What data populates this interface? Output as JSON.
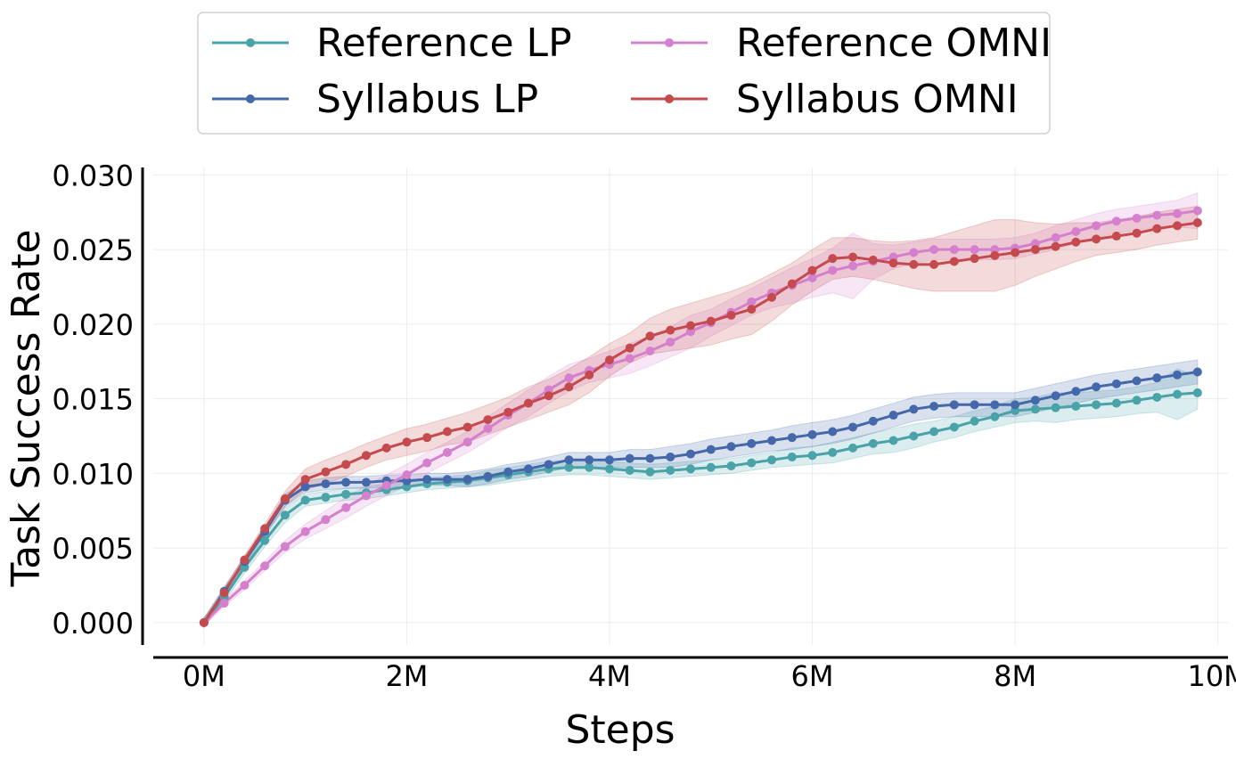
{
  "chart_data": {
    "type": "line",
    "title": "",
    "xlabel": "Steps",
    "ylabel": "Task Success Rate",
    "xlim": [
      -0.5,
      10.1
    ],
    "ylim": [
      -0.0015,
      0.0305
    ],
    "x_ticks": [
      0,
      2,
      4,
      6,
      8,
      10
    ],
    "x_tick_labels": [
      "0M",
      "2M",
      "4M",
      "6M",
      "8M",
      "10M"
    ],
    "y_ticks": [
      0,
      0.005,
      0.01,
      0.015,
      0.02,
      0.025,
      0.03
    ],
    "y_tick_labels": [
      "0.000",
      "0.005",
      "0.010",
      "0.015",
      "0.020",
      "0.025",
      "0.030"
    ],
    "grid": true,
    "legend_position": "top-center",
    "x_unit": "M steps",
    "x": [
      0,
      0.2,
      0.4,
      0.6,
      0.8,
      1.0,
      1.2,
      1.4,
      1.6,
      1.8,
      2.0,
      2.2,
      2.4,
      2.6,
      2.8,
      3.0,
      3.2,
      3.4,
      3.6,
      3.8,
      4.0,
      4.2,
      4.4,
      4.6,
      4.8,
      5.0,
      5.2,
      5.4,
      5.6,
      5.8,
      6.0,
      6.2,
      6.4,
      6.6,
      6.8,
      7.0,
      7.2,
      7.4,
      7.6,
      7.8,
      8.0,
      8.2,
      8.4,
      8.6,
      8.8,
      9.0,
      9.2,
      9.4,
      9.6,
      9.8
    ],
    "series": [
      {
        "name": "Reference LP",
        "color": "#4aa3a8",
        "values": [
          0,
          0.0017,
          0.0037,
          0.0055,
          0.0072,
          0.0082,
          0.0084,
          0.0086,
          0.0087,
          0.0089,
          0.0091,
          0.0093,
          0.0094,
          0.0095,
          0.0097,
          0.0099,
          0.0101,
          0.0103,
          0.0104,
          0.0104,
          0.0103,
          0.0102,
          0.0101,
          0.0102,
          0.0103,
          0.0104,
          0.0105,
          0.0107,
          0.0109,
          0.0111,
          0.0112,
          0.0114,
          0.0117,
          0.012,
          0.0122,
          0.0125,
          0.0128,
          0.0131,
          0.0135,
          0.0138,
          0.0142,
          0.0143,
          0.0144,
          0.0145,
          0.0146,
          0.0147,
          0.0149,
          0.0151,
          0.0153,
          0.0154
        ],
        "band": [
          0.0003,
          0.0003,
          0.0004,
          0.0004,
          0.0005,
          0.0004,
          0.0004,
          0.0004,
          0.0004,
          0.0004,
          0.0004,
          0.0004,
          0.0004,
          0.0004,
          0.0005,
          0.0005,
          0.0005,
          0.0005,
          0.0005,
          0.0005,
          0.0005,
          0.0005,
          0.0005,
          0.0005,
          0.0005,
          0.0005,
          0.0005,
          0.0005,
          0.0005,
          0.0006,
          0.0006,
          0.0007,
          0.0007,
          0.0007,
          0.0008,
          0.0008,
          0.0007,
          0.0007,
          0.0007,
          0.0007,
          0.0008,
          0.0008,
          0.001,
          0.0009,
          0.0009,
          0.0009,
          0.0009,
          0.001,
          0.0017,
          0.0011
        ]
      },
      {
        "name": "Syllabus LP",
        "color": "#4568aa",
        "values": [
          0,
          0.0021,
          0.0041,
          0.0061,
          0.0082,
          0.0091,
          0.0093,
          0.0094,
          0.0094,
          0.0095,
          0.0095,
          0.0096,
          0.0096,
          0.0096,
          0.0098,
          0.0101,
          0.0103,
          0.0106,
          0.0109,
          0.0109,
          0.0109,
          0.011,
          0.011,
          0.0111,
          0.0113,
          0.0116,
          0.0118,
          0.012,
          0.0122,
          0.0124,
          0.0126,
          0.0128,
          0.0131,
          0.0135,
          0.0139,
          0.0143,
          0.0145,
          0.0146,
          0.0146,
          0.0146,
          0.0146,
          0.0149,
          0.0152,
          0.0155,
          0.0158,
          0.016,
          0.0162,
          0.0164,
          0.0166,
          0.0168
        ],
        "band": [
          0.0003,
          0.0003,
          0.0003,
          0.0003,
          0.0004,
          0.0004,
          0.0004,
          0.0004,
          0.0004,
          0.0004,
          0.0004,
          0.0004,
          0.0004,
          0.0005,
          0.0005,
          0.0005,
          0.0005,
          0.0005,
          0.0005,
          0.0005,
          0.0005,
          0.0006,
          0.0006,
          0.0007,
          0.0007,
          0.0007,
          0.0007,
          0.0007,
          0.0007,
          0.0008,
          0.0008,
          0.0008,
          0.0008,
          0.0008,
          0.0008,
          0.0008,
          0.0008,
          0.0008,
          0.0008,
          0.0008,
          0.0008,
          0.0008,
          0.0008,
          0.0008,
          0.0008,
          0.0008,
          0.0008,
          0.0008,
          0.0008,
          0.0008
        ]
      },
      {
        "name": "Reference OMNI",
        "color": "#d580cd",
        "values": [
          0,
          0.0013,
          0.0025,
          0.0038,
          0.0051,
          0.0061,
          0.0069,
          0.0077,
          0.0085,
          0.0092,
          0.0099,
          0.0107,
          0.0114,
          0.0121,
          0.013,
          0.0139,
          0.0147,
          0.0156,
          0.0164,
          0.0169,
          0.0173,
          0.0177,
          0.0182,
          0.0188,
          0.0195,
          0.0201,
          0.0208,
          0.0215,
          0.0221,
          0.0226,
          0.0231,
          0.0236,
          0.0239,
          0.0242,
          0.0245,
          0.0248,
          0.025,
          0.025,
          0.025,
          0.025,
          0.0251,
          0.0254,
          0.0258,
          0.0262,
          0.0266,
          0.0269,
          0.0271,
          0.0273,
          0.0274,
          0.0276
        ],
        "band": [
          0.0002,
          0.0002,
          0.0003,
          0.0003,
          0.0004,
          0.0005,
          0.0006,
          0.0007,
          0.0007,
          0.0007,
          0.0007,
          0.0007,
          0.0007,
          0.0007,
          0.0008,
          0.0008,
          0.0009,
          0.0009,
          0.0009,
          0.0008,
          0.0009,
          0.001,
          0.001,
          0.001,
          0.0011,
          0.0009,
          0.0009,
          0.0009,
          0.001,
          0.0012,
          0.0013,
          0.0015,
          0.0022,
          0.0012,
          0.0008,
          0.0007,
          0.0007,
          0.0007,
          0.0007,
          0.0007,
          0.0007,
          0.0007,
          0.0008,
          0.0008,
          0.0008,
          0.0008,
          0.0008,
          0.0008,
          0.0009,
          0.0012
        ]
      },
      {
        "name": "Syllabus OMNI",
        "color": "#c44a4d",
        "values": [
          0,
          0.002,
          0.0042,
          0.0063,
          0.0083,
          0.0096,
          0.0101,
          0.0106,
          0.0112,
          0.0117,
          0.0121,
          0.0124,
          0.0128,
          0.0131,
          0.0136,
          0.0141,
          0.0147,
          0.0152,
          0.0158,
          0.0166,
          0.0176,
          0.0184,
          0.0192,
          0.0196,
          0.0199,
          0.0202,
          0.0206,
          0.021,
          0.0218,
          0.0227,
          0.0236,
          0.0244,
          0.0245,
          0.0243,
          0.0241,
          0.024,
          0.024,
          0.0242,
          0.0244,
          0.0246,
          0.0248,
          0.025,
          0.0252,
          0.0255,
          0.0257,
          0.0259,
          0.0261,
          0.0264,
          0.0266,
          0.0268
        ],
        "band": [
          0.0003,
          0.0003,
          0.0003,
          0.0003,
          0.0005,
          0.0007,
          0.0008,
          0.0008,
          0.0008,
          0.0008,
          0.0009,
          0.0009,
          0.0009,
          0.001,
          0.001,
          0.001,
          0.0011,
          0.0011,
          0.0012,
          0.0012,
          0.0011,
          0.001,
          0.0012,
          0.0014,
          0.0015,
          0.0016,
          0.0016,
          0.0017,
          0.0016,
          0.0014,
          0.0014,
          0.0014,
          0.0013,
          0.0013,
          0.0014,
          0.0016,
          0.0018,
          0.002,
          0.0022,
          0.0024,
          0.0022,
          0.0018,
          0.0015,
          0.0013,
          0.0011,
          0.0011,
          0.0011,
          0.0011,
          0.0011,
          0.0011
        ]
      }
    ]
  }
}
